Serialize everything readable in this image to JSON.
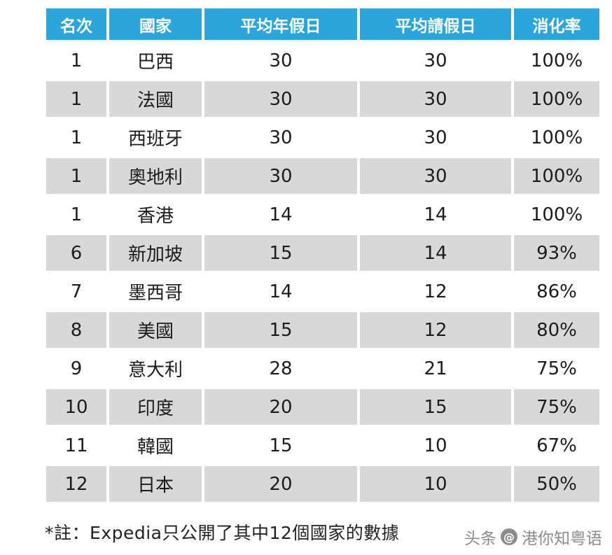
{
  "colors": {
    "header_bg": "#2BA5DB",
    "header_text": "#FFFFFF",
    "row_alt_bg": "#D8D8D8",
    "row_bg": "#FFFFFF",
    "body_text": "#1C1C1C",
    "watermark_text": "#8C8C8C"
  },
  "chart_data": {
    "type": "table",
    "title": "",
    "columns": [
      "名次",
      "國家",
      "平均年假日",
      "平均請假日",
      "消化率"
    ],
    "rows": [
      {
        "rank": "1",
        "country": "巴西",
        "avg_annual_leave": "30",
        "avg_taken": "30",
        "utilization": "100%"
      },
      {
        "rank": "1",
        "country": "法國",
        "avg_annual_leave": "30",
        "avg_taken": "30",
        "utilization": "100%"
      },
      {
        "rank": "1",
        "country": "西班牙",
        "avg_annual_leave": "30",
        "avg_taken": "30",
        "utilization": "100%"
      },
      {
        "rank": "1",
        "country": "奧地利",
        "avg_annual_leave": "30",
        "avg_taken": "30",
        "utilization": "100%"
      },
      {
        "rank": "1",
        "country": "香港",
        "avg_annual_leave": "14",
        "avg_taken": "14",
        "utilization": "100%"
      },
      {
        "rank": "6",
        "country": "新加坡",
        "avg_annual_leave": "15",
        "avg_taken": "14",
        "utilization": "93%"
      },
      {
        "rank": "7",
        "country": "墨西哥",
        "avg_annual_leave": "14",
        "avg_taken": "12",
        "utilization": "86%"
      },
      {
        "rank": "8",
        "country": "美國",
        "avg_annual_leave": "15",
        "avg_taken": "12",
        "utilization": "80%"
      },
      {
        "rank": "9",
        "country": "意大利",
        "avg_annual_leave": "28",
        "avg_taken": "21",
        "utilization": "75%"
      },
      {
        "rank": "10",
        "country": "印度",
        "avg_annual_leave": "20",
        "avg_taken": "15",
        "utilization": "75%"
      },
      {
        "rank": "11",
        "country": "韓國",
        "avg_annual_leave": "15",
        "avg_taken": "10",
        "utilization": "67%"
      },
      {
        "rank": "12",
        "country": "日本",
        "avg_annual_leave": "20",
        "avg_taken": "10",
        "utilization": "50%"
      }
    ]
  },
  "footnote": "*註：Expedia只公開了其中12個國家的數據",
  "watermark": {
    "platform": "头条",
    "icon_glyph": "@",
    "handle": "港你知粤语"
  }
}
